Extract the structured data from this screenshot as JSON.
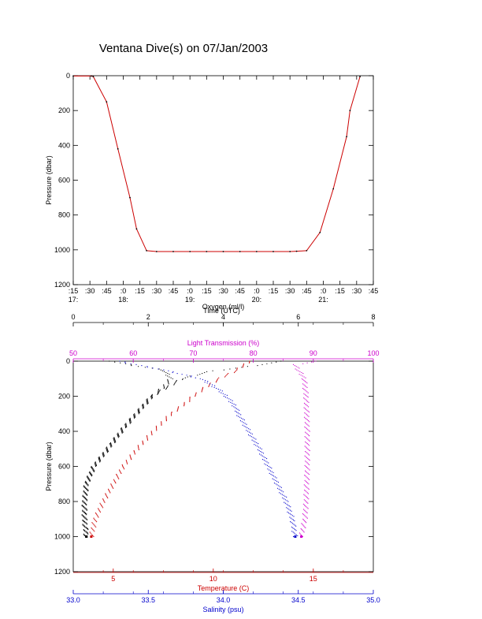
{
  "title": "Ventana Dive(s) on 07/Jan/2003",
  "chart_data": [
    {
      "type": "line",
      "title": "Ventana Dive(s) on 07/Jan/2003",
      "xlabel": "Time (UTC)",
      "ylabel": "Pressure (dbar)",
      "y_reversed": true,
      "ylim": [
        0,
        1200
      ],
      "y_ticks": [
        "0",
        "200",
        "400",
        "600",
        "800",
        "1000",
        "1200"
      ],
      "x_ticks_minutes": [
        ":15",
        ":30",
        ":45",
        ":0",
        ":15",
        ":30",
        ":45",
        ":0",
        ":15",
        ":30",
        ":45",
        ":0",
        ":15",
        ":30",
        ":45",
        ":0",
        ":15",
        ":30",
        ":45"
      ],
      "x_ticks_hours": [
        {
          "label": "17:",
          "tick": 0
        },
        {
          "label": "18:",
          "tick": 3
        },
        {
          "label": "19:",
          "tick": 7
        },
        {
          "label": "20:",
          "tick": 11
        },
        {
          "label": "21:",
          "tick": 15
        }
      ],
      "xlim_hours": [
        17.25,
        21.75
      ],
      "colors": {
        "line": "#cc0000",
        "axis": "#000000"
      },
      "series": [
        {
          "x_hours": [
            17.25,
            17.52,
            17.55,
            17.75,
            17.92,
            18.1,
            18.2,
            18.35,
            18.5,
            18.75,
            19.0,
            19.25,
            19.5,
            19.75,
            20.0,
            20.25,
            20.5,
            20.6,
            20.75,
            20.95,
            21.15,
            21.35,
            21.4,
            21.55
          ],
          "y_dbar": [
            2,
            2,
            5,
            150,
            420,
            700,
            880,
            1005,
            1010,
            1010,
            1010,
            1010,
            1010,
            1010,
            1010,
            1010,
            1010,
            1008,
            1005,
            900,
            650,
            350,
            200,
            5
          ]
        }
      ]
    },
    {
      "type": "scatter",
      "ylabel": "Pressure (dbar)",
      "y_reversed": true,
      "ylim": [
        0,
        1200
      ],
      "y_ticks": [
        "0",
        "200",
        "400",
        "600",
        "800",
        "1000",
        "1200"
      ],
      "axes": [
        {
          "name": "Oxygen (ml/l)",
          "position": "top",
          "range": [
            0,
            8
          ],
          "ticks": [
            "0",
            "2",
            "4",
            "6",
            "8"
          ],
          "color": "#000000"
        },
        {
          "name": "Light Transmission (%)",
          "position": "top",
          "range": [
            50,
            100
          ],
          "ticks": [
            "50",
            "60",
            "70",
            "80",
            "90",
            "100"
          ],
          "color": "#cc00cc"
        },
        {
          "name": "Temperature (C)",
          "position": "bottom",
          "range": [
            3,
            18
          ],
          "ticks": [
            "5",
            "10",
            "15"
          ],
          "color": "#cc0000"
        },
        {
          "name": "Salinity (psu)",
          "position": "bottom",
          "range": [
            33.0,
            35.0
          ],
          "ticks": [
            "33.0",
            "33.5",
            "34.0",
            "34.5",
            "35.0"
          ],
          "color": "#0000cc"
        }
      ],
      "series": [
        {
          "axis": 0,
          "color": "#000000",
          "depth": [
            0,
            30,
            60,
            100,
            150,
            200,
            260,
            320,
            380,
            450,
            520,
            600,
            700,
            800,
            900,
            1000
          ],
          "values": [
            5.6,
            4.7,
            3.6,
            2.9,
            2.5,
            2.1,
            1.85,
            1.6,
            1.35,
            1.1,
            0.85,
            0.55,
            0.35,
            0.3,
            0.3,
            0.35
          ]
        },
        {
          "axis": 0,
          "color": "#000000",
          "depth": [
            0,
            25,
            50,
            100,
            150,
            200,
            260,
            320,
            380,
            450,
            520,
            600,
            700,
            800,
            900,
            1000
          ],
          "values": [
            1.0,
            1.6,
            2.4,
            2.6,
            2.4,
            2.1,
            1.85,
            1.6,
            1.35,
            1.1,
            0.85,
            0.55,
            0.35,
            0.3,
            0.3,
            0.35
          ]
        },
        {
          "axis": 1,
          "color": "#cc00cc",
          "depth": [
            0,
            20,
            50,
            100,
            200,
            300,
            400,
            500,
            600,
            700,
            800,
            900,
            950,
            1000
          ],
          "values": [
            90.5,
            87.0,
            87.5,
            88.5,
            88.8,
            88.9,
            89.0,
            89.0,
            89.0,
            88.9,
            88.8,
            88.6,
            88.3,
            88.0
          ]
        },
        {
          "axis": 2,
          "color": "#cc0000",
          "depth": [
            0,
            50,
            100,
            150,
            200,
            250,
            300,
            400,
            500,
            600,
            700,
            800,
            900,
            1000
          ],
          "values": [
            11.8,
            11.2,
            10.3,
            9.6,
            9.0,
            8.5,
            7.9,
            7.0,
            6.2,
            5.5,
            5.0,
            4.5,
            4.1,
            3.9
          ]
        },
        {
          "axis": 3,
          "color": "#0000cc",
          "depth": [
            0,
            50,
            100,
            150,
            200,
            260,
            300,
            400,
            500,
            600,
            700,
            800,
            900,
            1000
          ],
          "values": [
            33.3,
            33.6,
            33.85,
            33.95,
            34.02,
            34.08,
            34.1,
            34.17,
            34.24,
            34.3,
            34.36,
            34.42,
            34.46,
            34.48
          ]
        }
      ]
    }
  ]
}
